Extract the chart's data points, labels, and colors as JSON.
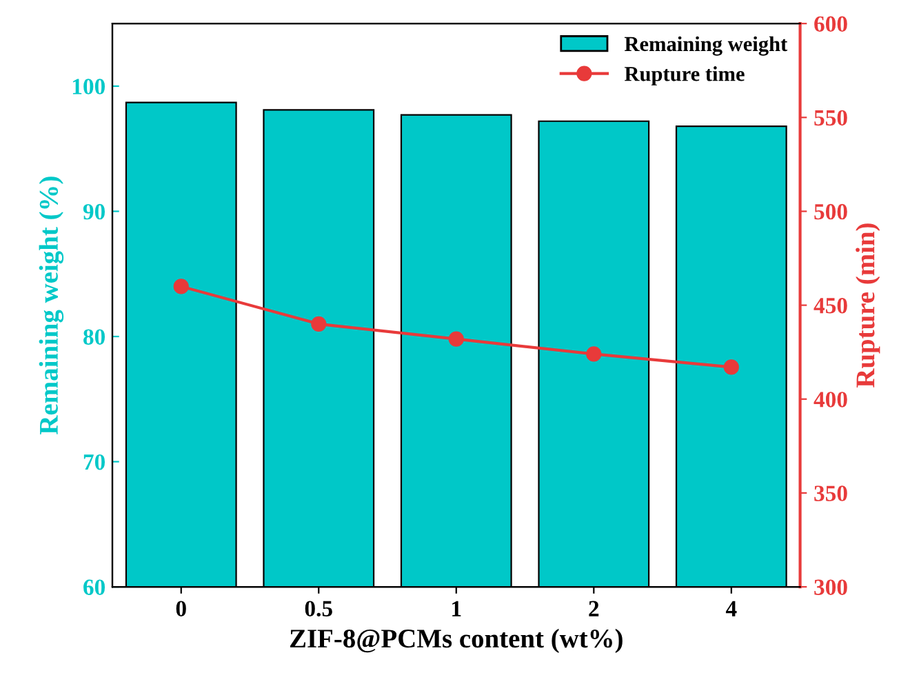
{
  "chart_data": {
    "type": "bar",
    "xlabel": "ZIF-8@PCMs content (wt%)",
    "ylabel": "Remaining weight (%)",
    "y2label": "Rupture (min)",
    "categories": [
      "0",
      "0.5",
      "1",
      "2",
      "4"
    ],
    "series": [
      {
        "name": "Remaining weight",
        "color": "#00c8c8",
        "values": [
          98.7,
          98.1,
          97.7,
          97.2,
          96.8
        ]
      },
      {
        "name": "Rupture time",
        "type": "line",
        "axis": "y2",
        "color": "#e83a3a",
        "marker": "circle",
        "values": [
          460,
          440,
          432,
          424,
          417
        ]
      }
    ],
    "ylim": [
      60,
      105
    ],
    "yticks": [
      60,
      70,
      80,
      90,
      100
    ],
    "y2lim": [
      300,
      600
    ],
    "y2ticks": [
      300,
      350,
      400,
      450,
      500,
      550,
      600
    ],
    "legend": "top right",
    "grid": false
  }
}
